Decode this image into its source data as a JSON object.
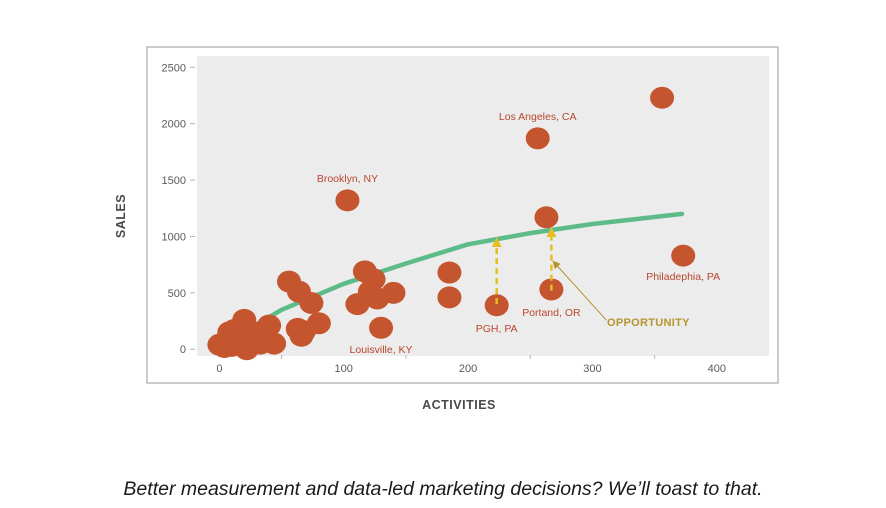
{
  "caption": "Better measurement and data-led marketing decisions? We’ll toast to that.",
  "colors": {
    "plot_background": "#ececec",
    "frame": "#9a9a9a",
    "point": "#c4552f",
    "trend": "#5dbb8a",
    "city_label": "#b8472e",
    "arrow": "#e6bd22",
    "opportunity": "#b5952f"
  },
  "chart_data": {
    "type": "scatter",
    "xlabel": "ACTIVITIES",
    "ylabel": "SALES",
    "xlim": [
      -18,
      442
    ],
    "ylim": [
      -60,
      2600
    ],
    "x_ticks": [
      0,
      100,
      200,
      300,
      400
    ],
    "y_ticks": [
      0,
      500,
      1000,
      1500,
      2000,
      2500
    ],
    "grid": false,
    "legend": "none",
    "points": [
      {
        "x": 0,
        "y": 40
      },
      {
        "x": 4,
        "y": 20
      },
      {
        "x": 7,
        "y": 100
      },
      {
        "x": 8,
        "y": 150
      },
      {
        "x": 10,
        "y": 30
      },
      {
        "x": 12,
        "y": 170
      },
      {
        "x": 14,
        "y": 60
      },
      {
        "x": 18,
        "y": 100
      },
      {
        "x": 20,
        "y": 260
      },
      {
        "x": 21,
        "y": 130
      },
      {
        "x": 22,
        "y": 0
      },
      {
        "x": 25,
        "y": 70
      },
      {
        "x": 28,
        "y": 150
      },
      {
        "x": 31,
        "y": 110
      },
      {
        "x": 33,
        "y": 50
      },
      {
        "x": 38,
        "y": 100
      },
      {
        "x": 40,
        "y": 210
      },
      {
        "x": 44,
        "y": 50
      },
      {
        "x": 56,
        "y": 600
      },
      {
        "x": 63,
        "y": 180
      },
      {
        "x": 64,
        "y": 510
      },
      {
        "x": 66,
        "y": 120
      },
      {
        "x": 68,
        "y": 160
      },
      {
        "x": 74,
        "y": 410
      },
      {
        "x": 80,
        "y": 230
      },
      {
        "x": 103,
        "y": 1320
      },
      {
        "x": 111,
        "y": 400
      },
      {
        "x": 117,
        "y": 690
      },
      {
        "x": 121,
        "y": 510
      },
      {
        "x": 124,
        "y": 620
      },
      {
        "x": 127,
        "y": 450
      },
      {
        "x": 130,
        "y": 190
      },
      {
        "x": 140,
        "y": 500
      },
      {
        "x": 185,
        "y": 680
      },
      {
        "x": 185,
        "y": 460
      },
      {
        "x": 223,
        "y": 390
      },
      {
        "x": 256,
        "y": 1870
      },
      {
        "x": 263,
        "y": 1170
      },
      {
        "x": 267,
        "y": 530
      },
      {
        "x": 356,
        "y": 2230
      },
      {
        "x": 373,
        "y": 830
      }
    ],
    "trend_line": [
      {
        "x": 0,
        "y": 30
      },
      {
        "x": 30,
        "y": 220
      },
      {
        "x": 50,
        "y": 350
      },
      {
        "x": 100,
        "y": 580
      },
      {
        "x": 150,
        "y": 760
      },
      {
        "x": 200,
        "y": 930
      },
      {
        "x": 250,
        "y": 1030
      },
      {
        "x": 300,
        "y": 1110
      },
      {
        "x": 340,
        "y": 1160
      },
      {
        "x": 372,
        "y": 1200
      }
    ],
    "labels": [
      {
        "text": "Brooklyn, NY",
        "x": 103,
        "y": 1520
      },
      {
        "text": "Los Angeles, CA",
        "x": 256,
        "y": 2070
      },
      {
        "text": "Philadephia, PA",
        "x": 373,
        "y": 650
      },
      {
        "text": "Portand, OR",
        "x": 267,
        "y": 330
      },
      {
        "text": "PGH, PA",
        "x": 223,
        "y": 190
      },
      {
        "text": "Louisville, KY",
        "x": 130,
        "y": 0
      }
    ],
    "arrows": [
      {
        "x": 223,
        "y_from": 400,
        "y_to": 950
      },
      {
        "x": 267,
        "y_from": 520,
        "y_to": 1040
      }
    ],
    "annotation": {
      "text": "OPPORTUNITY",
      "x": 345,
      "y": 240,
      "pointer_to": {
        "x": 270,
        "y": 760
      }
    }
  }
}
